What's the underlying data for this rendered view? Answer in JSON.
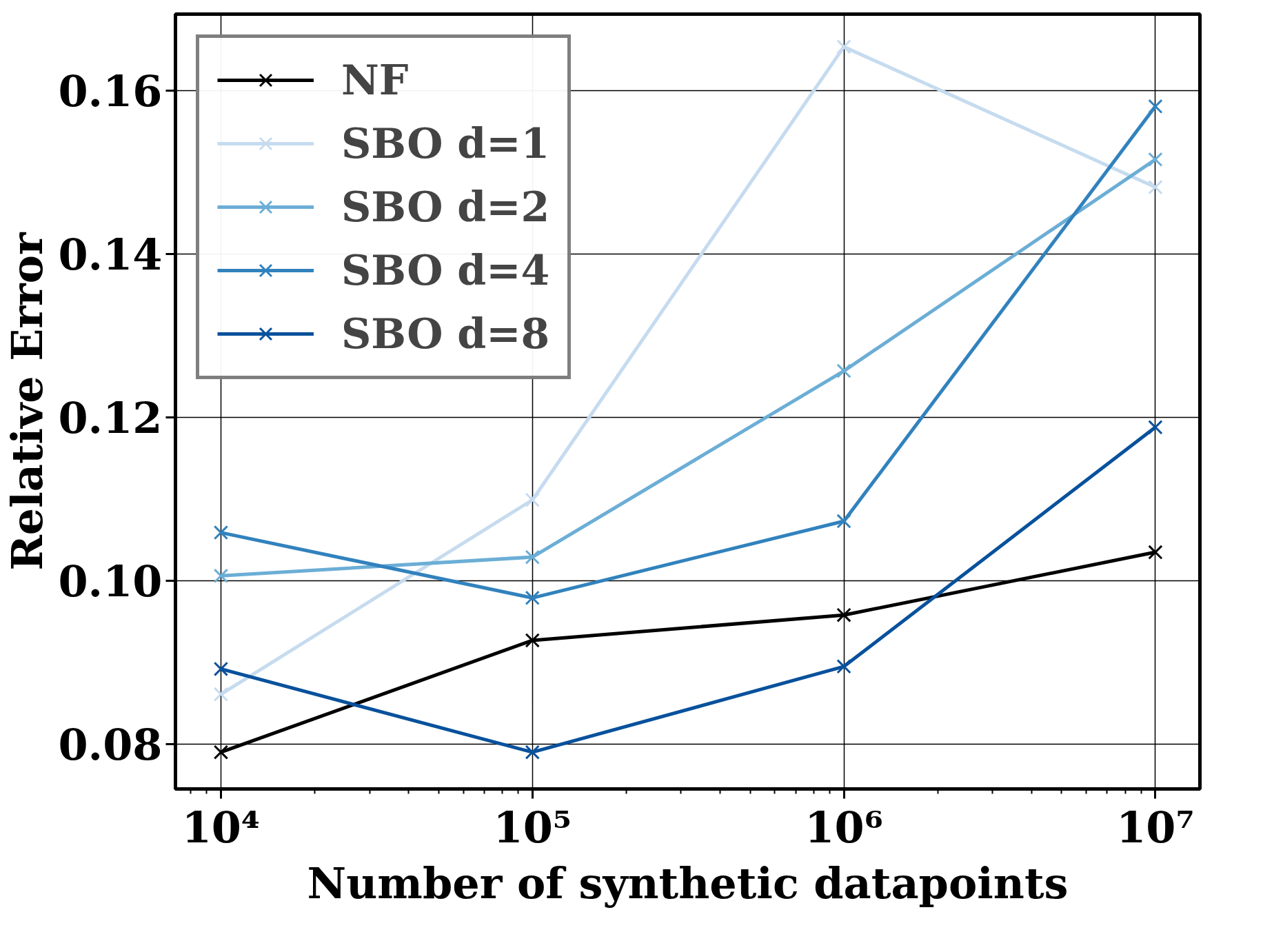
{
  "chart_data": {
    "type": "line",
    "xlabel": "Number of synthetic datapoints",
    "ylabel": "Relative Error",
    "x": [
      10000,
      100000,
      1000000,
      10000000
    ],
    "series": [
      {
        "name": "NF",
        "color": "#000000",
        "values": [
          0.079,
          0.0927,
          0.0958,
          0.1035
        ]
      },
      {
        "name": "SBO d=1",
        "color": "#c6dbef",
        "values": [
          0.0861,
          0.1099,
          0.1654,
          0.1482
        ]
      },
      {
        "name": "SBO d=2",
        "color": "#6baed6",
        "values": [
          0.1006,
          0.1029,
          0.1257,
          0.1516
        ]
      },
      {
        "name": "SBO d=4",
        "color": "#3182bd",
        "values": [
          0.1059,
          0.0979,
          0.1073,
          0.1581
        ]
      },
      {
        "name": "SBO d=8",
        "color": "#08519c",
        "values": [
          0.0892,
          0.079,
          0.0895,
          0.1188
        ]
      }
    ],
    "log": "x",
    "xlim": [
      7145,
      13900000
    ],
    "ylim": [
      0.0745,
      0.1694
    ],
    "xticks": [
      {
        "value": 10000,
        "label": "10⁴"
      },
      {
        "value": 100000,
        "label": "10⁵"
      },
      {
        "value": 1000000,
        "label": "10⁶"
      },
      {
        "value": 10000000,
        "label": "10⁷"
      }
    ],
    "yticks": [
      {
        "value": 0.08,
        "label": "0.08"
      },
      {
        "value": 0.1,
        "label": "0.10"
      },
      {
        "value": 0.12,
        "label": "0.12"
      },
      {
        "value": 0.14,
        "label": "0.14"
      },
      {
        "value": 0.16,
        "label": "0.16"
      }
    ],
    "grid": true,
    "legend": "top left",
    "marker": "cross",
    "line_style": "solid"
  }
}
